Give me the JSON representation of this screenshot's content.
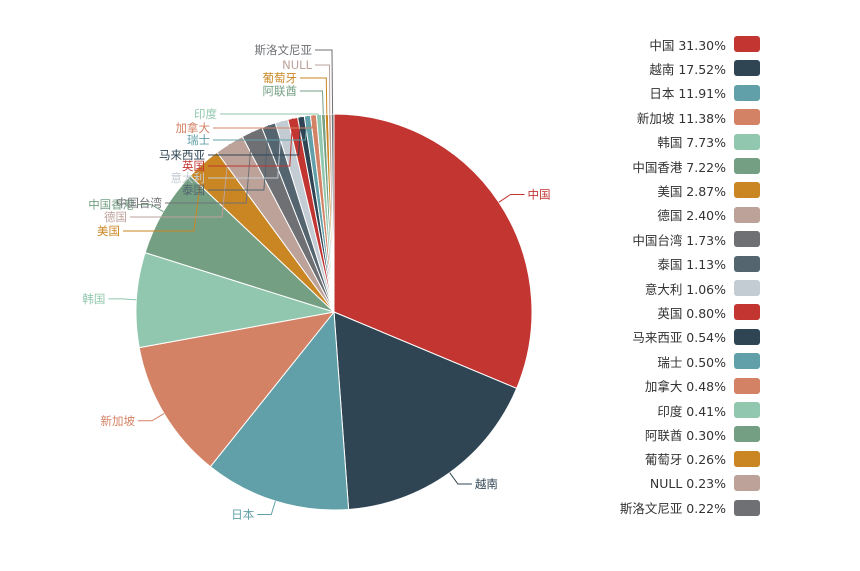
{
  "chart_data": {
    "type": "pie",
    "title": "",
    "legend_position": "right",
    "slices": [
      {
        "label": "中国",
        "value": 31.3,
        "legend": "中国  31.30%",
        "color": "#c23531"
      },
      {
        "label": "越南",
        "value": 17.52,
        "legend": "越南  17.52%",
        "color": "#2f4554"
      },
      {
        "label": "日本",
        "value": 11.91,
        "legend": "日本  11.91%",
        "color": "#61a0a8"
      },
      {
        "label": "新加坡",
        "value": 11.38,
        "legend": "新加坡  11.38%",
        "color": "#d48265"
      },
      {
        "label": "韩国",
        "value": 7.73,
        "legend": "韩国  7.73%",
        "color": "#91c7ae"
      },
      {
        "label": "中国香港",
        "value": 7.22,
        "legend": "中国香港  7.22%",
        "color": "#749f83"
      },
      {
        "label": "美国",
        "value": 2.87,
        "legend": "美国  2.87%",
        "color": "#ca8622"
      },
      {
        "label": "德国",
        "value": 2.4,
        "legend": "德国  2.40%",
        "color": "#bda29a"
      },
      {
        "label": "中国台湾",
        "value": 1.73,
        "legend": "中国台湾  1.73%",
        "color": "#6e7074"
      },
      {
        "label": "泰国",
        "value": 1.13,
        "legend": "泰国  1.13%",
        "color": "#546570"
      },
      {
        "label": "意大利",
        "value": 1.06,
        "legend": "意大利  1.06%",
        "color": "#c4ccd3"
      },
      {
        "label": "英国",
        "value": 0.8,
        "legend": "英国  0.80%",
        "color": "#c23531"
      },
      {
        "label": "马来西亚",
        "value": 0.54,
        "legend": "马来西亚  0.54%",
        "color": "#2f4554"
      },
      {
        "label": "瑞士",
        "value": 0.5,
        "legend": "瑞士  0.50%",
        "color": "#61a0a8"
      },
      {
        "label": "加拿大",
        "value": 0.48,
        "legend": "加拿大  0.48%",
        "color": "#d48265"
      },
      {
        "label": "印度",
        "value": 0.41,
        "legend": "印度  0.41%",
        "color": "#91c7ae"
      },
      {
        "label": "阿联酋",
        "value": 0.3,
        "legend": "阿联酋  0.30%",
        "color": "#749f83"
      },
      {
        "label": "葡萄牙",
        "value": 0.26,
        "legend": "葡萄牙  0.26%",
        "color": "#ca8622"
      },
      {
        "label": "NULL",
        "value": 0.23,
        "legend": "NULL  0.23%",
        "color": "#bda29a"
      },
      {
        "label": "斯洛文尼亚",
        "value": 0.22,
        "legend": "斯洛文尼亚  0.22%",
        "color": "#6e7074"
      }
    ]
  }
}
